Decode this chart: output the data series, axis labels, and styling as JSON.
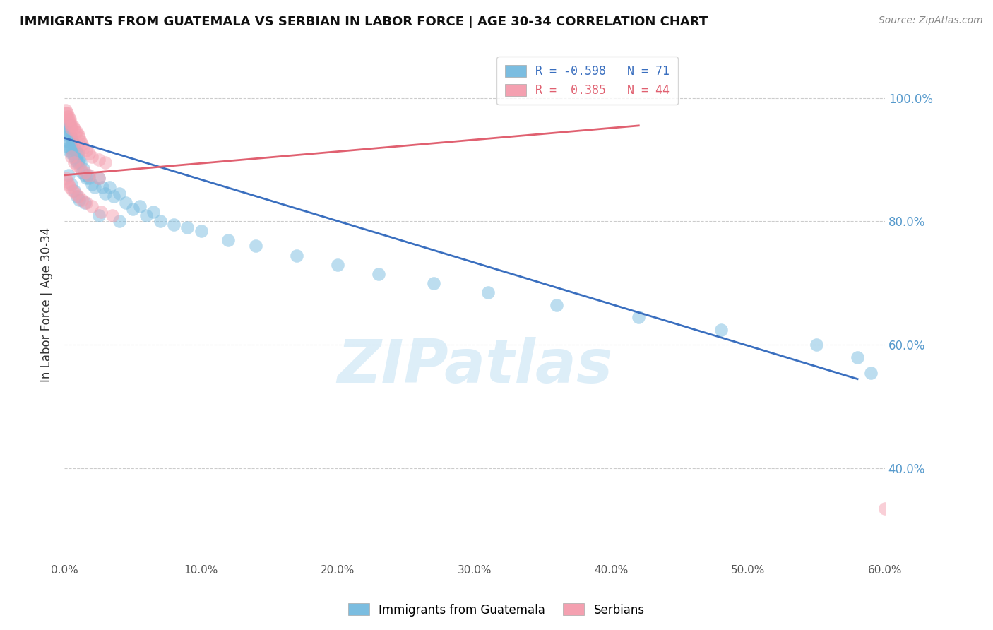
{
  "title": "IMMIGRANTS FROM GUATEMALA VS SERBIAN IN LABOR FORCE | AGE 30-34 CORRELATION CHART",
  "source": "Source: ZipAtlas.com",
  "ylabel": "In Labor Force | Age 30-34",
  "xlim": [
    0.0,
    0.6
  ],
  "ylim": [
    0.25,
    1.08
  ],
  "legend_label1": "Immigrants from Guatemala",
  "legend_label2": "Serbians",
  "R1": -0.598,
  "N1": 71,
  "R2": 0.385,
  "N2": 44,
  "color_blue": "#7bbde0",
  "color_pink": "#f4a0b0",
  "line_color_blue": "#3a6fbf",
  "line_color_pink": "#e06070",
  "blue_line": [
    0.0,
    0.58,
    0.935,
    0.545
  ],
  "pink_line": [
    0.0,
    0.42,
    0.875,
    0.955
  ],
  "guatemala_x": [
    0.001,
    0.001,
    0.001,
    0.002,
    0.002,
    0.002,
    0.003,
    0.003,
    0.003,
    0.004,
    0.004,
    0.004,
    0.005,
    0.005,
    0.005,
    0.006,
    0.006,
    0.007,
    0.007,
    0.008,
    0.008,
    0.009,
    0.009,
    0.01,
    0.01,
    0.011,
    0.012,
    0.013,
    0.014,
    0.015,
    0.016,
    0.017,
    0.018,
    0.02,
    0.022,
    0.025,
    0.028,
    0.03,
    0.033,
    0.036,
    0.04,
    0.045,
    0.05,
    0.055,
    0.06,
    0.065,
    0.07,
    0.08,
    0.09,
    0.1,
    0.12,
    0.14,
    0.17,
    0.2,
    0.23,
    0.27,
    0.31,
    0.36,
    0.42,
    0.48,
    0.55,
    0.58,
    0.59,
    0.003,
    0.005,
    0.007,
    0.009,
    0.011,
    0.015,
    0.025,
    0.04
  ],
  "guatemala_y": [
    0.96,
    0.955,
    0.95,
    0.945,
    0.94,
    0.93,
    0.93,
    0.92,
    0.915,
    0.955,
    0.94,
    0.92,
    0.935,
    0.92,
    0.91,
    0.93,
    0.91,
    0.925,
    0.905,
    0.915,
    0.9,
    0.91,
    0.895,
    0.91,
    0.895,
    0.9,
    0.895,
    0.88,
    0.885,
    0.875,
    0.87,
    0.875,
    0.87,
    0.86,
    0.855,
    0.87,
    0.855,
    0.845,
    0.855,
    0.84,
    0.845,
    0.83,
    0.82,
    0.825,
    0.81,
    0.815,
    0.8,
    0.795,
    0.79,
    0.785,
    0.77,
    0.76,
    0.745,
    0.73,
    0.715,
    0.7,
    0.685,
    0.665,
    0.645,
    0.625,
    0.6,
    0.58,
    0.555,
    0.875,
    0.86,
    0.85,
    0.84,
    0.835,
    0.83,
    0.81,
    0.8
  ],
  "serbian_x": [
    0.001,
    0.001,
    0.002,
    0.002,
    0.003,
    0.003,
    0.004,
    0.004,
    0.005,
    0.005,
    0.006,
    0.007,
    0.008,
    0.009,
    0.01,
    0.011,
    0.012,
    0.013,
    0.014,
    0.016,
    0.018,
    0.02,
    0.025,
    0.03,
    0.005,
    0.007,
    0.009,
    0.012,
    0.015,
    0.018,
    0.025,
    0.001,
    0.002,
    0.003,
    0.004,
    0.006,
    0.008,
    0.01,
    0.013,
    0.016,
    0.02,
    0.027,
    0.035,
    0.6
  ],
  "serbian_y": [
    0.98,
    0.975,
    0.975,
    0.97,
    0.97,
    0.965,
    0.965,
    0.96,
    0.955,
    0.95,
    0.955,
    0.95,
    0.945,
    0.945,
    0.94,
    0.935,
    0.93,
    0.925,
    0.92,
    0.915,
    0.91,
    0.905,
    0.9,
    0.895,
    0.905,
    0.895,
    0.89,
    0.885,
    0.88,
    0.875,
    0.87,
    0.87,
    0.865,
    0.86,
    0.855,
    0.85,
    0.845,
    0.84,
    0.835,
    0.83,
    0.825,
    0.815,
    0.81,
    0.335
  ]
}
